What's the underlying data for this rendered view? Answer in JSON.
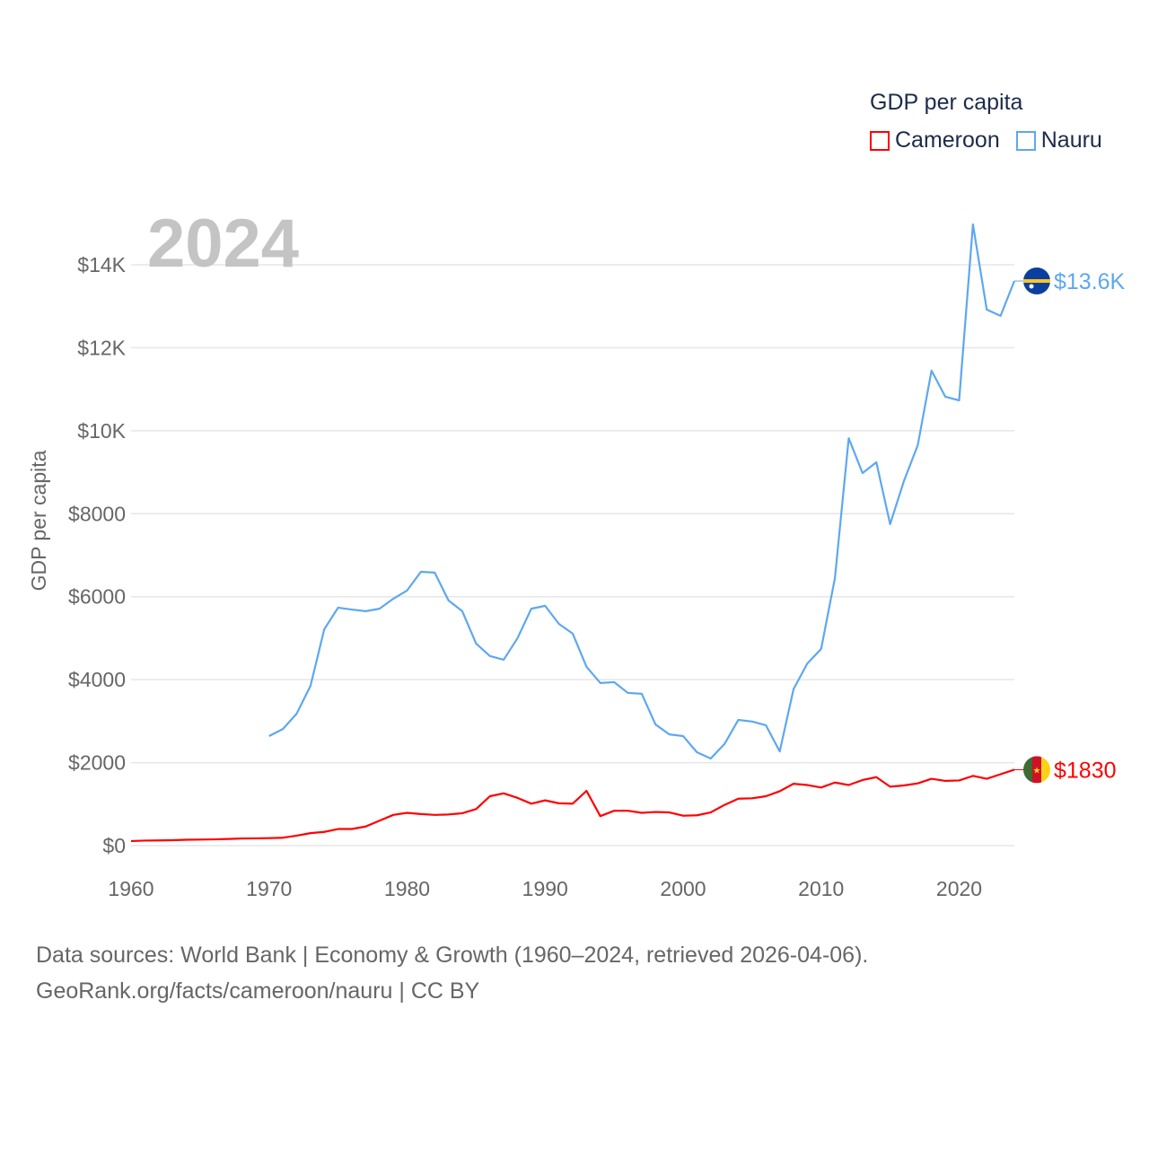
{
  "legend": {
    "title": "GDP per capita",
    "items": [
      {
        "label": "Cameroon",
        "color": "#ff0000"
      },
      {
        "label": "Nauru",
        "color": "#5da8ef"
      }
    ]
  },
  "year_label": "2024",
  "footer": {
    "line1": "Data sources: World Bank | Economy & Growth (1960–2024, retrieved 2026-04-06).",
    "line2": "GeoRank.org/facts/cameroon/nauru | CC BY"
  },
  "chart_data": {
    "type": "line",
    "title": "GDP per capita",
    "xlabel": "",
    "ylabel": "GDP per capita",
    "xlim": [
      1960,
      2024
    ],
    "ylim": [
      0,
      14000
    ],
    "grid": true,
    "legend_position": "top-right",
    "x_ticks": [
      "1960",
      "1970",
      "1980",
      "1990",
      "2000",
      "2010",
      "2020"
    ],
    "y_ticks": [
      "$0",
      "$2000",
      "$4000",
      "$6000",
      "$8000",
      "$10K",
      "$12K",
      "$14K"
    ],
    "series": [
      {
        "name": "Cameroon",
        "color": "#ff0000",
        "start_year": 1960,
        "end_label": "$1830",
        "values": [
          110,
          120,
          125,
          130,
          140,
          145,
          150,
          160,
          170,
          175,
          180,
          190,
          240,
          300,
          330,
          400,
          400,
          460,
          600,
          740,
          790,
          760,
          740,
          750,
          780,
          880,
          1190,
          1260,
          1150,
          1010,
          1090,
          1020,
          1010,
          1320,
          710,
          840,
          840,
          790,
          810,
          800,
          720,
          730,
          800,
          980,
          1130,
          1140,
          1190,
          1310,
          1490,
          1460,
          1400,
          1520,
          1460,
          1580,
          1650,
          1420,
          1450,
          1500,
          1610,
          1560,
          1570,
          1680,
          1610,
          1720,
          1830
        ]
      },
      {
        "name": "Nauru",
        "color": "#5da8ef",
        "start_year": 1970,
        "end_label": "$13.6K",
        "values": [
          2640,
          2810,
          3180,
          3850,
          5215,
          5735,
          5690,
          5650,
          5710,
          5950,
          6150,
          6600,
          6580,
          5910,
          5650,
          4870,
          4570,
          4480,
          5000,
          5710,
          5780,
          5345,
          5110,
          4310,
          3920,
          3940,
          3680,
          3660,
          2920,
          2680,
          2640,
          2250,
          2100,
          2450,
          3030,
          2990,
          2900,
          2270,
          3770,
          4390,
          4740,
          6450,
          9820,
          8980,
          9240,
          7750,
          8790,
          9650,
          11450,
          10820,
          10730,
          14975,
          12920,
          12770,
          13610
        ]
      }
    ]
  }
}
